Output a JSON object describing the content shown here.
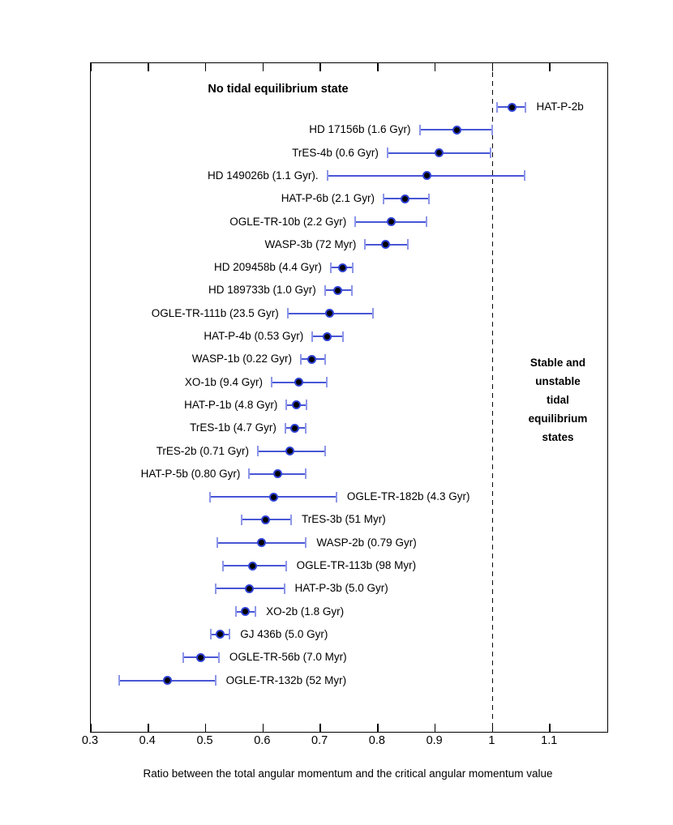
{
  "figure": {
    "title_left": "No tidal equilibrium state",
    "title_right": "Stable and\nunstable tidal\nequilibrium\nstates",
    "xlabel": "Ratio between the total angular momentum and the critical angular momentum value"
  },
  "colors": {
    "error_line": "#4856d6",
    "error_cap": "#8d96e8",
    "marker_edge": "#2e41d4",
    "marker_fill": "#000000",
    "axis": "#000000"
  },
  "chart_data": {
    "type": "scatter",
    "subtype": "horizontal-errorbar",
    "title": "No tidal equilibrium state / Stable and unstable tidal equilibrium states",
    "xlabel": "Ratio between the total angular momentum and the critical angular momentum value",
    "ylabel": "",
    "xlim": [
      0.3,
      1.2
    ],
    "grid": false,
    "threshold_line_x": 1.0,
    "x_ticks": [
      {
        "v": 0.3,
        "label": "0.3"
      },
      {
        "v": 0.4,
        "label": "0.4"
      },
      {
        "v": 0.5,
        "label": "0.5"
      },
      {
        "v": 0.6,
        "label": "0.6"
      },
      {
        "v": 0.7,
        "label": "0.7"
      },
      {
        "v": 0.8,
        "label": "0.8"
      },
      {
        "v": 0.9,
        "label": "0.9"
      },
      {
        "v": 1.0,
        "label": "1"
      },
      {
        "v": 1.1,
        "label": "1.1"
      }
    ],
    "series": [
      {
        "label": "HAT-P-2b",
        "value": 1.034,
        "lo": 1.008,
        "hi": 1.058,
        "label_side": "right"
      },
      {
        "label": "HD 17156b (1.6 Gyr)",
        "value": 0.938,
        "lo": 0.873,
        "hi": 1.0,
        "label_side": "left"
      },
      {
        "label": "TrES-4b (0.6 Gyr)",
        "value": 0.907,
        "lo": 0.817,
        "hi": 0.997,
        "label_side": "left"
      },
      {
        "label": "HD 149026b (1.1 Gyr).",
        "value": 0.885,
        "lo": 0.712,
        "hi": 1.056,
        "label_side": "left"
      },
      {
        "label": "HAT-P-6b (2.1 Gyr)",
        "value": 0.848,
        "lo": 0.81,
        "hi": 0.889,
        "label_side": "left"
      },
      {
        "label": "OGLE-TR-10b (2.2 Gyr)",
        "value": 0.823,
        "lo": 0.761,
        "hi": 0.885,
        "label_side": "left"
      },
      {
        "label": "WASP-3b (72 Myr)",
        "value": 0.814,
        "lo": 0.778,
        "hi": 0.852,
        "label_side": "left"
      },
      {
        "label": "HD 209458b (4.4 Gyr)",
        "value": 0.738,
        "lo": 0.718,
        "hi": 0.757,
        "label_side": "left"
      },
      {
        "label": "HD 189733b (1.0 Gyr)",
        "value": 0.73,
        "lo": 0.708,
        "hi": 0.755,
        "label_side": "left"
      },
      {
        "label": "OGLE-TR-111b (23.5 Gyr)",
        "value": 0.716,
        "lo": 0.643,
        "hi": 0.792,
        "label_side": "left"
      },
      {
        "label": "HAT-P-4b (0.53 Gyr)",
        "value": 0.712,
        "lo": 0.686,
        "hi": 0.74,
        "label_side": "left"
      },
      {
        "label": "WASP-1b (0.22 Gyr)",
        "value": 0.685,
        "lo": 0.666,
        "hi": 0.708,
        "label_side": "left"
      },
      {
        "label": "XO-1b (9.4 Gyr)",
        "value": 0.662,
        "lo": 0.615,
        "hi": 0.711,
        "label_side": "left"
      },
      {
        "label": "HAT-P-1b (4.8 Gyr)",
        "value": 0.658,
        "lo": 0.641,
        "hi": 0.676,
        "label_side": "left"
      },
      {
        "label": "TrES-1b (4.7 Gyr)",
        "value": 0.655,
        "lo": 0.639,
        "hi": 0.675,
        "label_side": "left"
      },
      {
        "label": "TrES-2b (0.71 Gyr)",
        "value": 0.647,
        "lo": 0.591,
        "hi": 0.708,
        "label_side": "left"
      },
      {
        "label": "HAT-P-5b (0.80 Gyr)",
        "value": 0.625,
        "lo": 0.576,
        "hi": 0.674,
        "label_side": "left"
      },
      {
        "label": "OGLE-TR-182b (4.3 Gyr)",
        "value": 0.619,
        "lo": 0.508,
        "hi": 0.728,
        "label_side": "right"
      },
      {
        "label": "TrES-3b (51 Myr)",
        "value": 0.605,
        "lo": 0.563,
        "hi": 0.649,
        "label_side": "right"
      },
      {
        "label": "WASP-2b (0.79 Gyr)",
        "value": 0.597,
        "lo": 0.52,
        "hi": 0.675,
        "label_side": "right"
      },
      {
        "label": "OGLE-TR-113b (98 Myr)",
        "value": 0.582,
        "lo": 0.53,
        "hi": 0.64,
        "label_side": "right"
      },
      {
        "label": "HAT-P-3b (5.0 Gyr)",
        "value": 0.576,
        "lo": 0.517,
        "hi": 0.637,
        "label_side": "right"
      },
      {
        "label": "XO-2b (1.8 Gyr)",
        "value": 0.569,
        "lo": 0.553,
        "hi": 0.587,
        "label_side": "right"
      },
      {
        "label": "GJ 436b (5.0 Gyr)",
        "value": 0.526,
        "lo": 0.509,
        "hi": 0.542,
        "label_side": "right"
      },
      {
        "label": "OGLE-TR-56b (7.0 Myr)",
        "value": 0.491,
        "lo": 0.461,
        "hi": 0.523,
        "label_side": "right"
      },
      {
        "label": "OGLE-TR-132b (52 Myr)",
        "value": 0.433,
        "lo": 0.35,
        "hi": 0.517,
        "label_side": "right"
      }
    ]
  }
}
